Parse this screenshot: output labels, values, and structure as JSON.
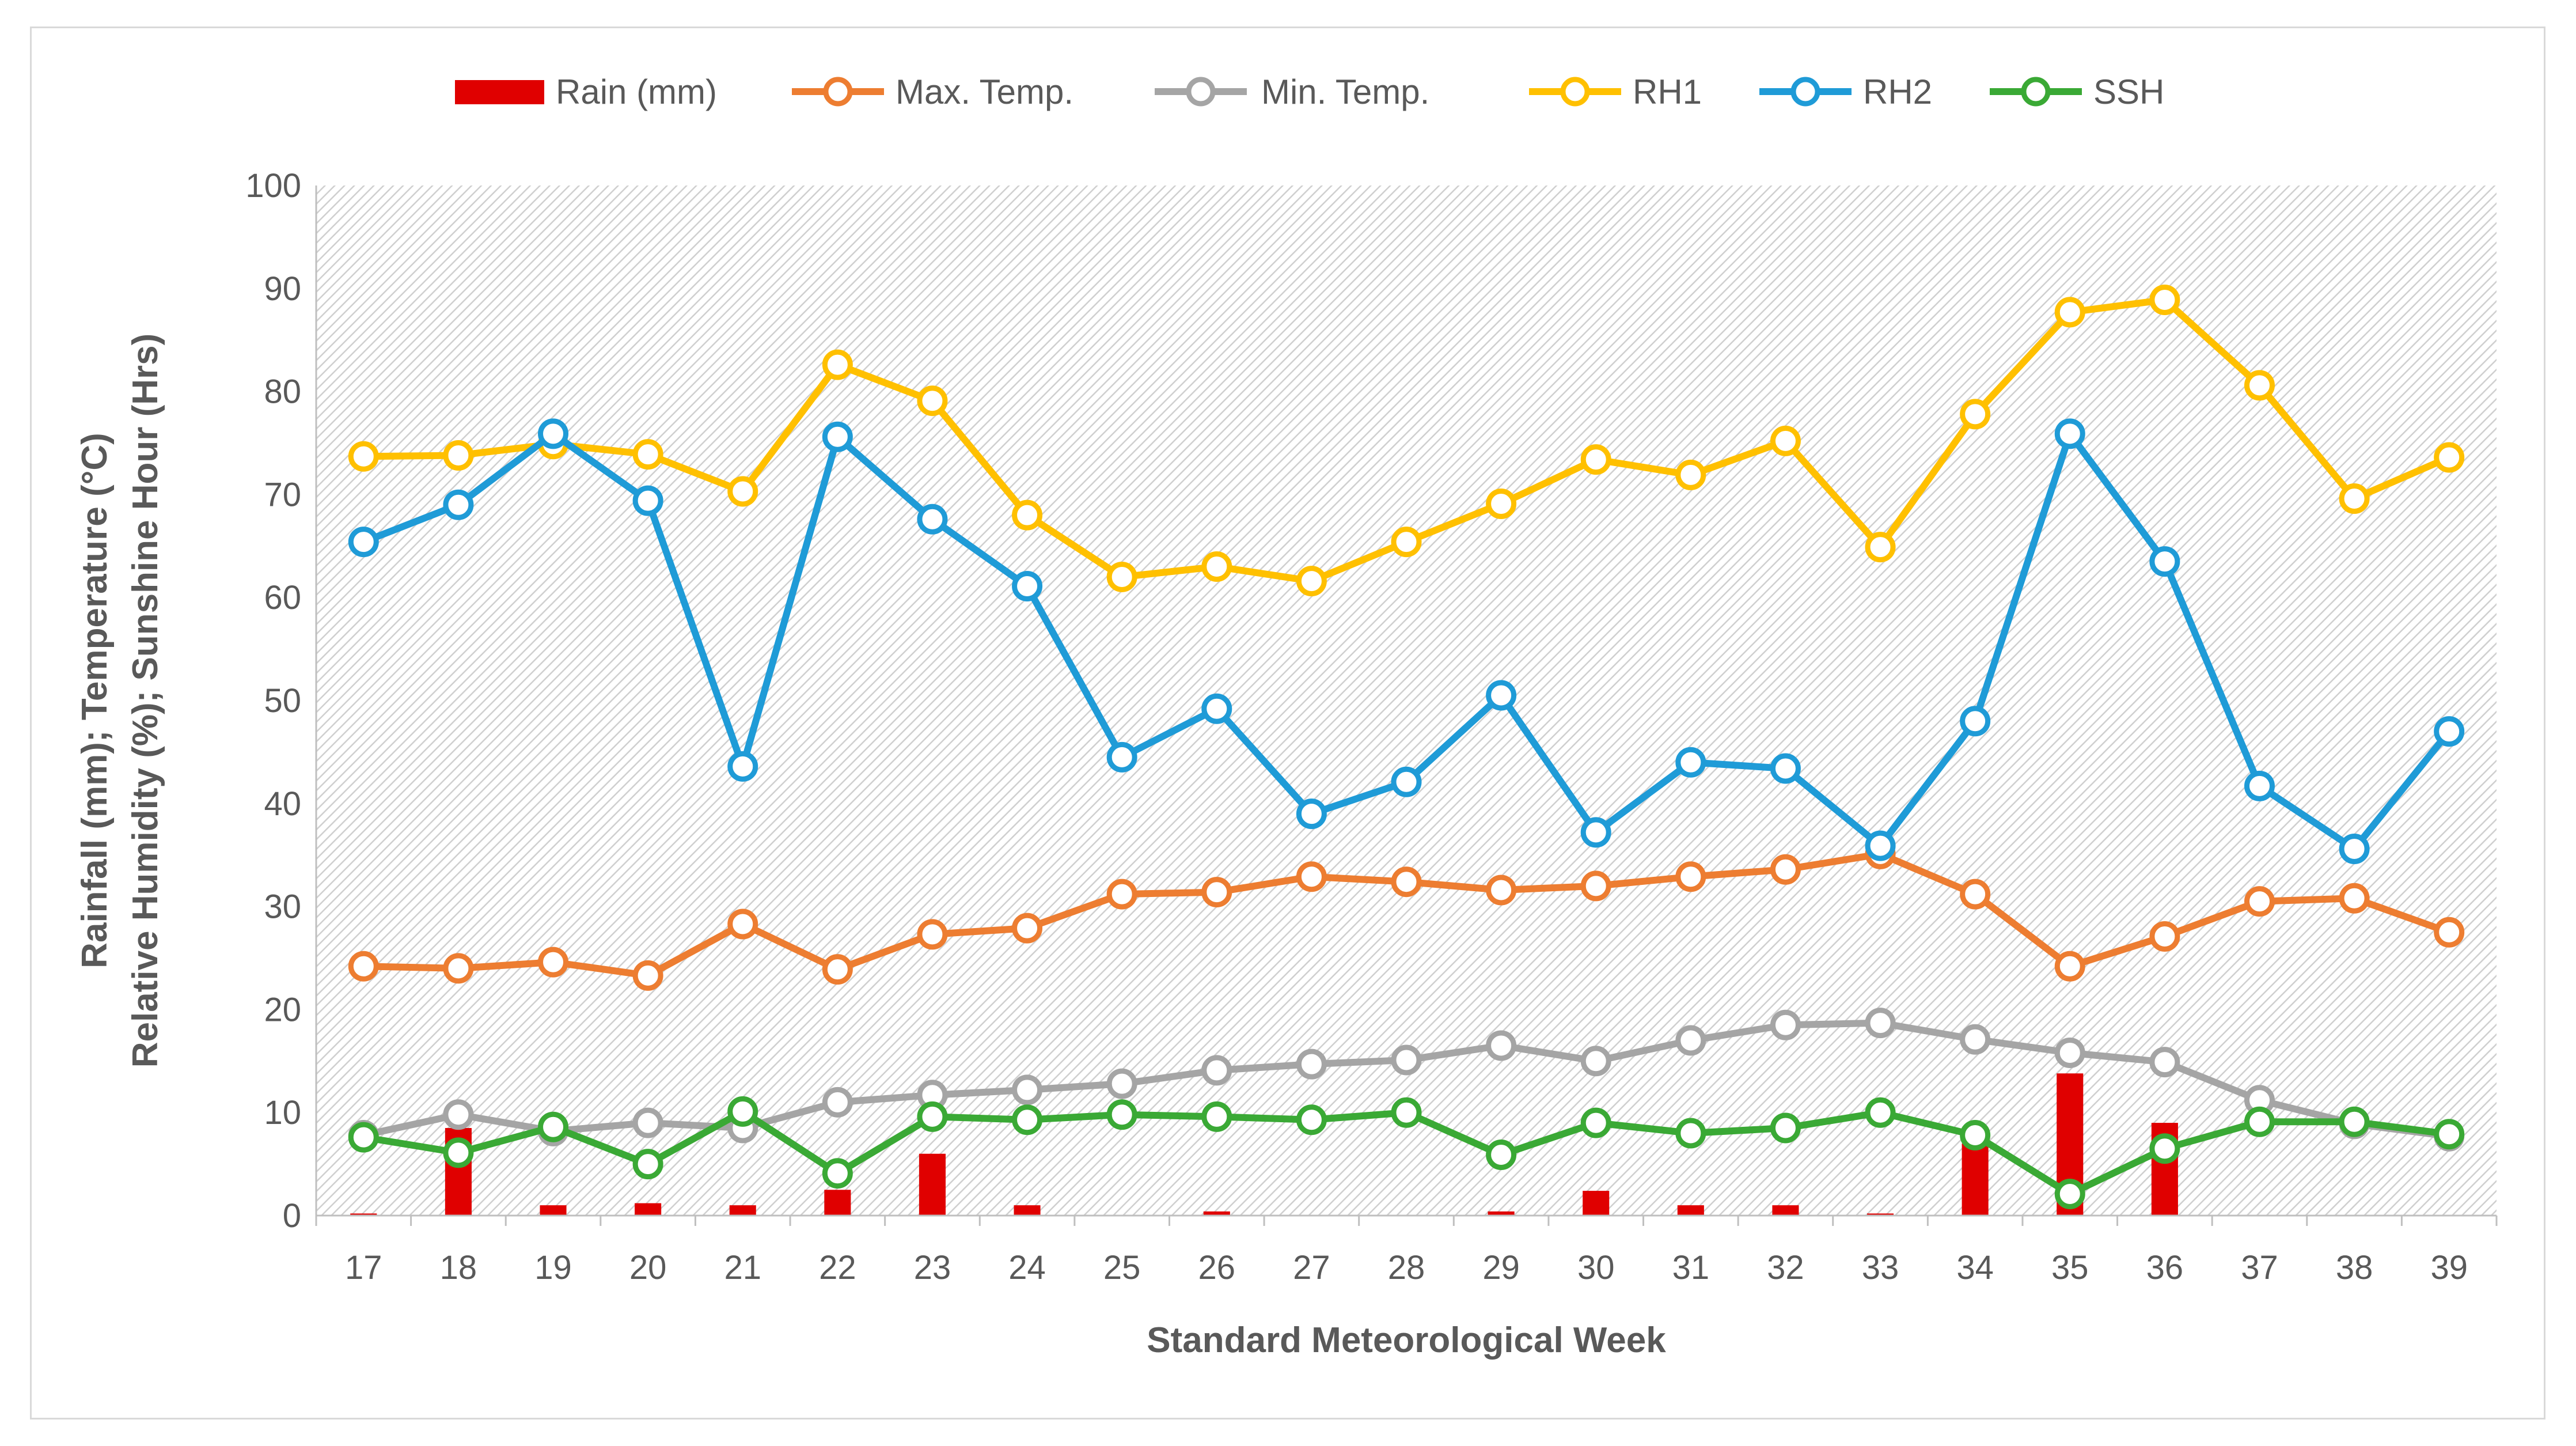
{
  "chart_data": {
    "type": "line",
    "title": "",
    "xlabel": "Standard Meteorological Week",
    "ylabel_lines": [
      "Rainfall (mm); Temperature (°C)",
      "Relative Humidity (%); Sunshine Hour (Hrs)"
    ],
    "ylim": [
      0,
      100
    ],
    "yticks": [
      "0",
      "10",
      "20",
      "30",
      "40",
      "50",
      "60",
      "70",
      "80",
      "90",
      "100"
    ],
    "categories": [
      "17",
      "18",
      "19",
      "20",
      "21",
      "22",
      "23",
      "24",
      "25",
      "26",
      "27",
      "28",
      "29",
      "30",
      "31",
      "32",
      "33",
      "34",
      "35",
      "36",
      "37",
      "38",
      "39"
    ],
    "legend_position": "top",
    "grid": false,
    "series": [
      {
        "name": "Rain (mm)",
        "kind": "bar",
        "color": "#e00000",
        "values": [
          0.2,
          8.5,
          1.0,
          1.2,
          1.0,
          2.5,
          6.0,
          1.0,
          0,
          0.4,
          0,
          0,
          0.4,
          2.4,
          1.0,
          1.0,
          0.2,
          7.0,
          13.8,
          9.0,
          0,
          0,
          0
        ]
      },
      {
        "name": "Max. Temp.",
        "kind": "line",
        "color": "#ed7d31",
        "values": [
          24.2,
          24.0,
          24.6,
          23.3,
          28.3,
          23.9,
          27.3,
          27.9,
          31.2,
          31.4,
          32.9,
          32.4,
          31.6,
          32.0,
          32.9,
          33.6,
          35.1,
          31.2,
          24.2,
          27.1,
          30.5,
          30.8,
          27.5
        ]
      },
      {
        "name": "Min. Temp.",
        "kind": "line",
        "color": "#a5a5a5",
        "values": [
          7.8,
          9.8,
          8.2,
          9.0,
          8.5,
          11.0,
          11.7,
          12.2,
          12.8,
          14.1,
          14.7,
          15.1,
          16.5,
          15.0,
          17.0,
          18.5,
          18.7,
          17.1,
          15.8,
          14.9,
          11.2,
          8.9,
          7.7
        ]
      },
      {
        "name": "RH1",
        "kind": "line",
        "color": "#ffc000",
        "values": [
          73.7,
          73.8,
          74.9,
          73.9,
          70.3,
          82.6,
          79.1,
          68.0,
          62.0,
          63.0,
          61.6,
          65.4,
          69.1,
          73.4,
          71.9,
          75.2,
          64.9,
          77.8,
          87.7,
          88.9,
          80.6,
          69.6,
          73.6
        ]
      },
      {
        "name": "RH2",
        "kind": "line",
        "color": "#1f9bd7",
        "values": [
          65.4,
          69.0,
          75.9,
          69.4,
          43.6,
          75.6,
          67.6,
          61.1,
          44.5,
          49.2,
          39.0,
          42.1,
          50.5,
          37.2,
          44.0,
          43.4,
          35.9,
          48.0,
          75.9,
          63.5,
          41.7,
          35.6,
          47.0
        ]
      },
      {
        "name": "SSH",
        "kind": "line",
        "color": "#3aa935",
        "values": [
          7.6,
          6.1,
          8.6,
          5.0,
          10.1,
          4.1,
          9.6,
          9.3,
          9.8,
          9.6,
          9.3,
          10.0,
          5.9,
          9.0,
          8.0,
          8.5,
          10.0,
          7.8,
          2.1,
          6.5,
          9.1,
          9.1,
          7.9
        ]
      }
    ]
  }
}
